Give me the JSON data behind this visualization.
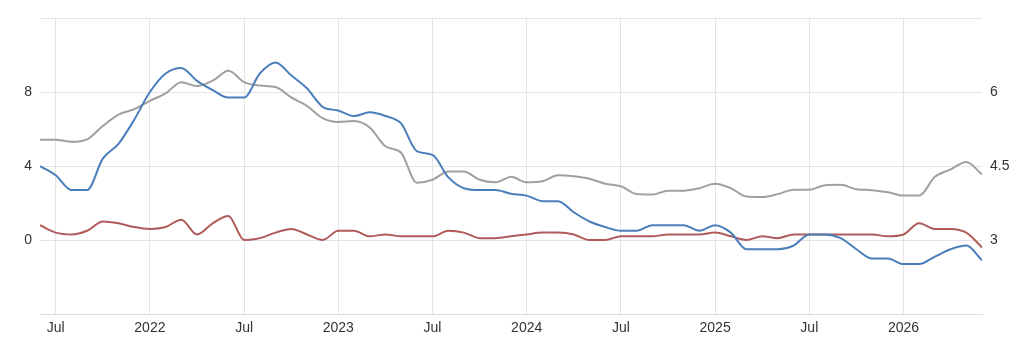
{
  "chart_data": {
    "type": "line",
    "x": [
      "2021-06",
      "2021-07",
      "2021-08",
      "2021-09",
      "2021-10",
      "2021-11",
      "2021-12",
      "2022-01",
      "2022-02",
      "2022-03",
      "2022-04",
      "2022-05",
      "2022-06",
      "2022-07",
      "2022-08",
      "2022-09",
      "2022-10",
      "2022-11",
      "2022-12",
      "2023-01",
      "2023-02",
      "2023-03",
      "2023-04",
      "2023-05",
      "2023-06",
      "2023-07",
      "2023-08",
      "2023-09",
      "2023-10",
      "2023-11",
      "2023-12",
      "2024-01",
      "2024-02",
      "2024-03",
      "2024-04",
      "2024-05",
      "2024-06",
      "2024-07",
      "2024-08",
      "2024-09",
      "2024-10",
      "2024-11",
      "2024-12",
      "2025-01",
      "2025-02",
      "2025-03",
      "2025-04",
      "2025-05",
      "2025-06",
      "2025-07",
      "2025-08",
      "2025-09",
      "2025-10",
      "2025-11",
      "2025-12",
      "2026-01",
      "2026-02",
      "2026-03",
      "2026-04",
      "2026-05",
      "2026-06"
    ],
    "series": [
      {
        "color": "#4a7ebb",
        "values": [
          4.0,
          3.5,
          2.7,
          2.7,
          4.4,
          5.2,
          6.5,
          8.0,
          9.0,
          9.3,
          8.6,
          8.1,
          7.7,
          7.7,
          9.0,
          9.6,
          8.9,
          8.2,
          7.2,
          7.0,
          6.7,
          6.9,
          6.7,
          6.3,
          4.8,
          4.6,
          3.4,
          2.8,
          2.7,
          2.7,
          2.5,
          2.4,
          2.1,
          2.1,
          1.5,
          1.0,
          0.7,
          0.5,
          0.5,
          0.8,
          0.8,
          0.8,
          0.5,
          0.8,
          0.4,
          -0.5,
          -0.5,
          -0.5,
          -0.3,
          0.3,
          0.3,
          0.1,
          -0.5,
          -1.0,
          -1.0,
          -1.3,
          -1.3,
          -0.9,
          -0.5,
          -0.3,
          -1.1
        ]
      },
      {
        "color": "#b05a5a",
        "values": [
          0.8,
          0.4,
          0.3,
          0.5,
          1.0,
          0.9,
          0.7,
          0.6,
          0.7,
          1.1,
          0.3,
          0.9,
          1.3,
          0.0,
          0.1,
          0.4,
          0.6,
          0.3,
          0.0,
          0.5,
          0.5,
          0.2,
          0.3,
          0.2,
          0.2,
          0.2,
          0.5,
          0.4,
          0.1,
          0.1,
          0.2,
          0.3,
          0.4,
          0.4,
          0.3,
          0.0,
          0.0,
          0.2,
          0.2,
          0.2,
          0.3,
          0.3,
          0.3,
          0.4,
          0.2,
          0.0,
          0.2,
          0.1,
          0.3,
          0.3,
          0.3,
          0.3,
          0.3,
          0.3,
          0.2,
          0.3,
          0.9,
          0.6,
          0.6,
          0.4,
          -0.4
        ]
      },
      {
        "color": "#a0a0a0",
        "axis": "y2",
        "values": [
          5.03,
          5.03,
          4.99,
          5.04,
          5.31,
          5.54,
          5.65,
          5.82,
          5.97,
          6.2,
          6.12,
          6.23,
          6.43,
          6.2,
          6.13,
          6.1,
          5.89,
          5.72,
          5.47,
          5.39,
          5.41,
          5.28,
          4.9,
          4.77,
          4.16,
          4.22,
          4.39,
          4.39,
          4.22,
          4.17,
          4.28,
          4.17,
          4.19,
          4.31,
          4.29,
          4.24,
          4.14,
          4.09,
          3.93,
          3.92,
          4.0,
          4.0,
          4.05,
          4.14,
          4.05,
          3.88,
          3.87,
          3.93,
          4.02,
          4.02,
          4.11,
          4.12,
          4.03,
          4.01,
          3.97,
          3.9,
          3.9,
          4.28,
          4.43,
          4.58,
          4.33
        ]
      }
    ],
    "xlim": [
      "2021-06",
      "2026-06"
    ],
    "xticks": [
      {
        "value": "2021-07",
        "label": "Jul"
      },
      {
        "value": "2022-01",
        "label": "2022"
      },
      {
        "value": "2022-07",
        "label": "Jul"
      },
      {
        "value": "2023-01",
        "label": "2023"
      },
      {
        "value": "2023-07",
        "label": "Jul"
      },
      {
        "value": "2024-01",
        "label": "2024"
      },
      {
        "value": "2024-07",
        "label": "Jul"
      },
      {
        "value": "2025-01",
        "label": "2025"
      },
      {
        "value": "2025-07",
        "label": "Jul"
      },
      {
        "value": "2026-01",
        "label": "2026"
      }
    ],
    "ylim": [
      -4,
      12
    ],
    "yticks": [
      {
        "value": -4,
        "label": null
      },
      0,
      4,
      8,
      {
        "value": 12,
        "label": null
      }
    ],
    "y2lim": [
      1.5,
      7.5
    ],
    "y2ticks": [
      3,
      4.5,
      6
    ],
    "grid": true,
    "legend": false,
    "marker": "none"
  }
}
